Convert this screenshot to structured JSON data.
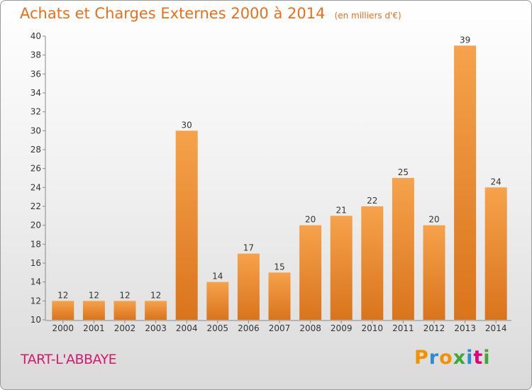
{
  "header": {
    "title": "Achats et Charges Externes 2000 à 2014",
    "subtitle": "(en milliers d'€)"
  },
  "footer": {
    "commune": "TART-L'ABBAYE",
    "logo_text": "Proxiti",
    "logo_letters": [
      {
        "ch": "P",
        "color": "#f39200"
      },
      {
        "ch": "r",
        "color": "#2a8dd4"
      },
      {
        "ch": "o",
        "color": "#f39200"
      },
      {
        "ch": "x",
        "color": "#3aaa35"
      },
      {
        "ch": "i",
        "color": "#2a8dd4"
      },
      {
        "ch": "t",
        "color": "#e2007a"
      },
      {
        "ch": "i",
        "color": "#3aaa35"
      }
    ]
  },
  "colors": {
    "bar_light": "#f6a24c",
    "bar_dark": "#d9741c",
    "title": "#e8701a",
    "commune": "#d7186c"
  },
  "chart_data": {
    "type": "bar",
    "title": "Achats et Charges Externes 2000 à 2014",
    "subtitle": "(en milliers d'€)",
    "categories": [
      "2000",
      "2001",
      "2002",
      "2003",
      "2004",
      "2005",
      "2006",
      "2007",
      "2008",
      "2009",
      "2010",
      "2011",
      "2012",
      "2013",
      "2014"
    ],
    "values": [
      12,
      12,
      12,
      12,
      30,
      14,
      17,
      15,
      20,
      21,
      22,
      25,
      20,
      39,
      24
    ],
    "ylim": [
      10,
      40
    ],
    "yticks": [
      10,
      12,
      14,
      16,
      18,
      20,
      22,
      24,
      26,
      28,
      30,
      32,
      34,
      36,
      38,
      40
    ],
    "grid": false,
    "legend": "none"
  }
}
